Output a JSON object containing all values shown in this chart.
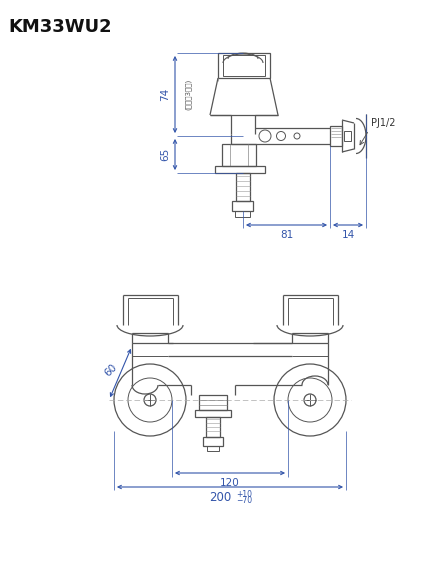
{
  "title": "KM33WU2",
  "bg_color": "#ffffff",
  "line_color": "#555555",
  "dim_color": "#3355aa",
  "fig_width": 4.21,
  "fig_height": 5.61,
  "lw": 0.9
}
